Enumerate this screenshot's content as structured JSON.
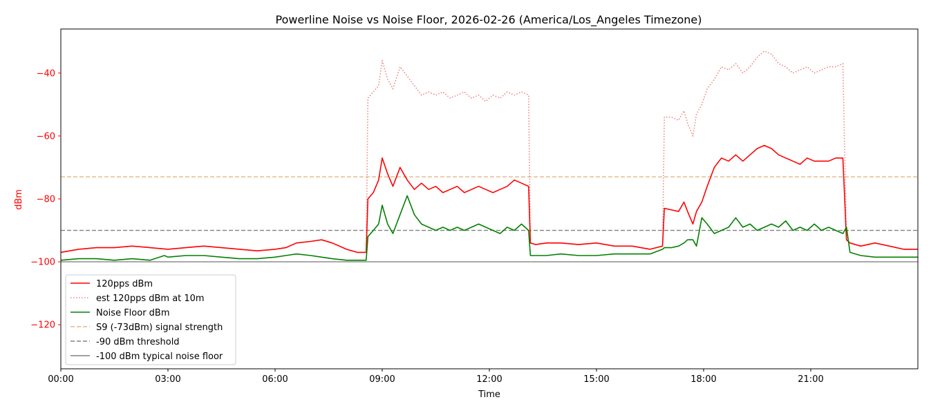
{
  "chart_data": {
    "type": "line",
    "title": "Powerline Noise vs Noise Floor, 2026-02-26 (America/Los_Angeles Timezone)",
    "xlabel": "Time",
    "ylabel": "dBm",
    "xlim": [
      0,
      24
    ],
    "ylim": [
      -134,
      -26
    ],
    "x_ticks": [
      {
        "value": 0,
        "label": "00:00"
      },
      {
        "value": 3,
        "label": "03:00"
      },
      {
        "value": 6,
        "label": "06:00"
      },
      {
        "value": 9,
        "label": "09:00"
      },
      {
        "value": 12,
        "label": "12:00"
      },
      {
        "value": 15,
        "label": "15:00"
      },
      {
        "value": 18,
        "label": "18:00"
      },
      {
        "value": 21,
        "label": "21:00"
      }
    ],
    "y_ticks": [
      {
        "value": -40,
        "label": "−40"
      },
      {
        "value": -60,
        "label": "−60"
      },
      {
        "value": -80,
        "label": "−80"
      },
      {
        "value": -100,
        "label": "−100"
      },
      {
        "value": -120,
        "label": "−120"
      }
    ],
    "grid": false,
    "legend_position": "lower-left",
    "colors": {
      "pps": "#ff0000",
      "est": "#f08080",
      "noise": "#008000",
      "s9": "#deb887",
      "threshold": "#808080",
      "floor": "#808080",
      "ylabel": "#ff0000"
    },
    "series": [
      {
        "name": "120pps dBm",
        "style": "solid",
        "x": [
          0,
          0.5,
          1,
          1.5,
          2,
          2.5,
          3,
          3.5,
          4,
          4.5,
          5,
          5.5,
          6,
          6.3,
          6.6,
          7,
          7.3,
          7.6,
          8,
          8.3,
          8.55,
          8.6,
          8.75,
          8.9,
          9.0,
          9.15,
          9.3,
          9.5,
          9.7,
          9.9,
          10.1,
          10.3,
          10.5,
          10.7,
          10.9,
          11.1,
          11.3,
          11.5,
          11.7,
          11.9,
          12.1,
          12.3,
          12.5,
          12.7,
          12.9,
          13.1,
          13.15,
          13.3,
          13.6,
          14,
          14.5,
          15,
          15.5,
          16,
          16.5,
          16.85,
          16.9,
          17.1,
          17.3,
          17.45,
          17.55,
          17.7,
          17.8,
          17.95,
          18.1,
          18.3,
          18.5,
          18.7,
          18.9,
          19.1,
          19.3,
          19.5,
          19.7,
          19.9,
          20.1,
          20.3,
          20.5,
          20.7,
          20.9,
          21.1,
          21.3,
          21.5,
          21.7,
          21.9,
          22.0,
          22.1,
          22.4,
          22.8,
          23.2,
          23.6,
          24
        ],
        "y": [
          -97,
          -96,
          -95.5,
          -95.5,
          -95,
          -95.5,
          -96,
          -95.5,
          -95,
          -95.5,
          -96,
          -96.5,
          -96,
          -95.5,
          -94,
          -93.5,
          -93,
          -94,
          -96,
          -97,
          -97,
          -80,
          -78,
          -74,
          -67,
          -72,
          -76,
          -70,
          -74,
          -77,
          -75,
          -77,
          -76,
          -78,
          -77,
          -76,
          -78,
          -77,
          -76,
          -77,
          -78,
          -77,
          -76,
          -74,
          -75,
          -76,
          -94,
          -94.5,
          -94,
          -94,
          -94.5,
          -94,
          -95,
          -95,
          -96,
          -95,
          -83,
          -83.5,
          -84,
          -81,
          -84,
          -88,
          -84,
          -81,
          -76,
          -70,
          -67,
          -68,
          -66,
          -68,
          -66,
          -64,
          -63,
          -64,
          -66,
          -67,
          -68,
          -69,
          -67,
          -68,
          -68,
          -68,
          -67,
          -67,
          -93,
          -94,
          -95,
          -94,
          -95,
          -96,
          -96
        ]
      },
      {
        "name": "est 120pps dBm at 10m",
        "style": "dotted",
        "x": [
          0,
          0.5,
          1,
          1.5,
          2,
          2.5,
          3,
          3.5,
          4,
          4.5,
          5,
          5.5,
          6,
          6.3,
          6.6,
          7,
          7.3,
          7.6,
          8,
          8.3,
          8.55,
          8.6,
          8.75,
          8.9,
          9.0,
          9.15,
          9.3,
          9.5,
          9.7,
          9.9,
          10.1,
          10.3,
          10.5,
          10.7,
          10.9,
          11.1,
          11.3,
          11.5,
          11.7,
          11.9,
          12.1,
          12.3,
          12.5,
          12.7,
          12.9,
          13.1,
          13.15,
          13.3,
          13.6,
          14,
          14.5,
          15,
          15.5,
          16,
          16.5,
          16.85,
          16.9,
          17.1,
          17.3,
          17.45,
          17.55,
          17.7,
          17.8,
          17.95,
          18.1,
          18.3,
          18.5,
          18.7,
          18.9,
          19.1,
          19.3,
          19.5,
          19.7,
          19.9,
          20.1,
          20.3,
          20.5,
          20.7,
          20.9,
          21.1,
          21.3,
          21.5,
          21.7,
          21.9,
          22.0,
          22.1,
          22.4,
          22.8,
          23.2,
          23.6,
          24
        ],
        "y": [
          -97,
          -96,
          -95.5,
          -95.5,
          -95,
          -95.5,
          -96,
          -95.5,
          -95,
          -95.5,
          -96,
          -96.5,
          -96,
          -95.5,
          -94,
          -93.5,
          -93,
          -94,
          -96,
          -97,
          -97,
          -48,
          -46,
          -44,
          -36,
          -42,
          -45,
          -38,
          -41,
          -44,
          -47,
          -46,
          -47,
          -46,
          -48,
          -47,
          -46,
          -48,
          -47,
          -49,
          -47,
          -48,
          -46,
          -47,
          -46,
          -47,
          -94,
          -94.5,
          -94,
          -94,
          -94.5,
          -94,
          -95,
          -95,
          -96,
          -95,
          -54,
          -54,
          -55,
          -52,
          -56,
          -60,
          -53,
          -50,
          -45,
          -42,
          -38,
          -39,
          -37,
          -40,
          -38,
          -35,
          -33,
          -34,
          -37,
          -38,
          -40,
          -39,
          -38,
          -40,
          -39,
          -38,
          -38,
          -37,
          -93,
          -94,
          -95,
          -94,
          -95,
          -96,
          -96
        ]
      },
      {
        "name": "Noise Floor dBm",
        "style": "solid",
        "x": [
          0,
          0.5,
          1,
          1.5,
          2,
          2.5,
          2.9,
          3,
          3.5,
          4,
          4.5,
          5,
          5.5,
          6,
          6.3,
          6.6,
          7,
          7.3,
          7.6,
          8,
          8.3,
          8.55,
          8.6,
          8.75,
          8.9,
          9.0,
          9.15,
          9.3,
          9.5,
          9.7,
          9.9,
          10.1,
          10.3,
          10.5,
          10.7,
          10.9,
          11.1,
          11.3,
          11.5,
          11.7,
          11.9,
          12.1,
          12.3,
          12.5,
          12.7,
          12.9,
          13.1,
          13.15,
          13.3,
          13.6,
          14,
          14.5,
          15,
          15.5,
          16,
          16.5,
          16.85,
          16.9,
          17.1,
          17.3,
          17.45,
          17.55,
          17.7,
          17.8,
          17.95,
          18.1,
          18.3,
          18.5,
          18.7,
          18.9,
          19.1,
          19.3,
          19.5,
          19.7,
          19.9,
          20.1,
          20.3,
          20.5,
          20.7,
          20.9,
          21.1,
          21.3,
          21.5,
          21.7,
          21.9,
          22.0,
          22.1,
          22.4,
          22.8,
          23.2,
          23.6,
          24
        ],
        "y": [
          -99.5,
          -99,
          -99,
          -99.5,
          -99,
          -99.5,
          -98,
          -98.5,
          -98,
          -98,
          -98.5,
          -99,
          -99,
          -98.5,
          -98,
          -97.5,
          -98,
          -98.5,
          -99,
          -99.5,
          -99.5,
          -99.5,
          -92,
          -90,
          -88,
          -82,
          -88,
          -91,
          -85,
          -79,
          -85,
          -88,
          -89,
          -90,
          -89,
          -90,
          -89,
          -90,
          -89,
          -88,
          -89,
          -90,
          -91,
          -89,
          -90,
          -88,
          -90,
          -98,
          -98,
          -98,
          -97.5,
          -98,
          -98,
          -97.5,
          -97.5,
          -97.5,
          -96,
          -95.5,
          -95.5,
          -95,
          -94,
          -93,
          -93,
          -95,
          -86,
          -88,
          -91,
          -90,
          -89,
          -86,
          -89,
          -88,
          -90,
          -89,
          -88,
          -89,
          -87,
          -90,
          -89,
          -90,
          -88,
          -90,
          -89,
          -90,
          -91,
          -89,
          -97,
          -98,
          -98.5,
          -98.5,
          -98.5,
          -98.5
        ]
      },
      {
        "name": "S9 (-73dBm) signal strength",
        "style": "dashed",
        "x": [
          0,
          24
        ],
        "y": [
          -73,
          -73
        ]
      },
      {
        "name": "-90 dBm threshold",
        "style": "dashed",
        "x": [
          0,
          24
        ],
        "y": [
          -90,
          -90
        ]
      },
      {
        "name": "-100 dBm typical noise floor",
        "style": "solid",
        "x": [
          0,
          24
        ],
        "y": [
          -100,
          -100
        ]
      }
    ]
  }
}
